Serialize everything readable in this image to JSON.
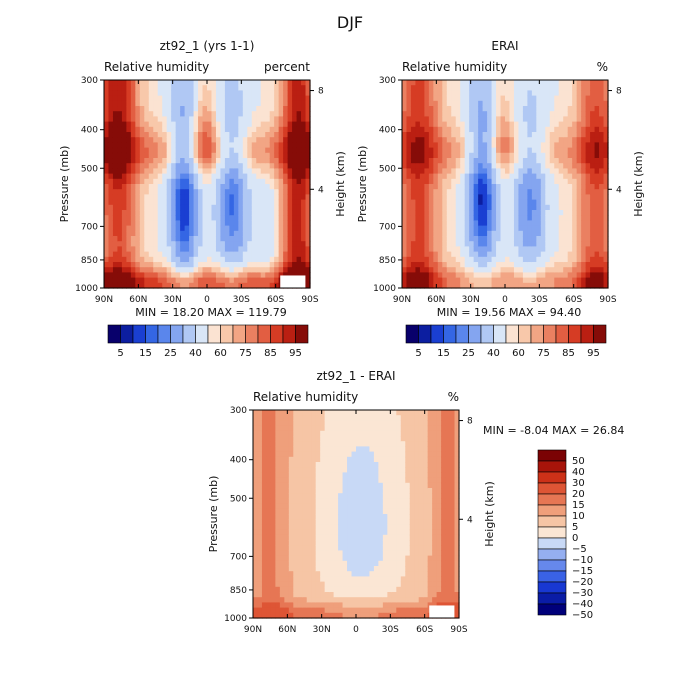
{
  "figure_title": "DJF",
  "chart_data": [
    {
      "id": "model",
      "type": "heatmap",
      "title": "zt92_1 (yrs 1-1)",
      "subtitle_left": "Relative humidity",
      "subtitle_right": "percent",
      "ylabel": "Pressure (mb)",
      "ylabel_right": "Height (km)",
      "x_ticks": [
        "90N",
        "60N",
        "30N",
        "0",
        "30S",
        "60S",
        "90S"
      ],
      "y_ticks": [
        "300",
        "400",
        "500",
        "700",
        "850",
        "1000"
      ],
      "y_right_ticks": [
        "8",
        "4"
      ],
      "ylim": [
        1000,
        300
      ],
      "y_scale": "log",
      "stats": "MIN =   18.20   MAX =  119.79",
      "levels": [
        5,
        10,
        15,
        20,
        25,
        30,
        40,
        50,
        60,
        65,
        70,
        75,
        80,
        85,
        90,
        95
      ],
      "colorbar_labels": [
        "5",
        "15",
        "25",
        "40",
        "60",
        "75",
        "85",
        "95"
      ],
      "colorbar_orientation": "horizontal"
    },
    {
      "id": "erai",
      "type": "heatmap",
      "title": "ERAI",
      "subtitle_left": "Relative humidity",
      "subtitle_right": "%",
      "ylabel": "Pressure (mb)",
      "ylabel_right": "Height (km)",
      "x_ticks": [
        "90N",
        "60N",
        "30N",
        "0",
        "30S",
        "60S",
        "90S"
      ],
      "y_ticks": [
        "300",
        "400",
        "500",
        "700",
        "850",
        "1000"
      ],
      "y_right_ticks": [
        "8",
        "4"
      ],
      "ylim": [
        1000,
        300
      ],
      "y_scale": "log",
      "stats": "MIN =   19.56   MAX =   94.40",
      "levels": [
        5,
        10,
        15,
        20,
        25,
        30,
        40,
        50,
        60,
        65,
        70,
        75,
        80,
        85,
        90,
        95
      ],
      "colorbar_labels": [
        "5",
        "15",
        "25",
        "40",
        "60",
        "75",
        "85",
        "95"
      ],
      "colorbar_orientation": "horizontal"
    },
    {
      "id": "diff",
      "type": "heatmap",
      "title": "zt92_1 - ERAI",
      "subtitle_left": "Relative humidity",
      "subtitle_right": "%",
      "ylabel": "Pressure (mb)",
      "ylabel_right": "Height (km)",
      "x_ticks": [
        "90N",
        "60N",
        "30N",
        "0",
        "30S",
        "60S",
        "90S"
      ],
      "y_ticks": [
        "300",
        "400",
        "500",
        "700",
        "850",
        "1000"
      ],
      "y_right_ticks": [
        "8",
        "4"
      ],
      "ylim": [
        1000,
        300
      ],
      "y_scale": "log",
      "stats": "MIN =   -8.04   MAX =   26.84",
      "levels": [
        -50,
        -40,
        -30,
        -20,
        -15,
        -10,
        -5,
        0,
        5,
        10,
        15,
        20,
        30,
        40,
        50
      ],
      "colorbar_labels": [
        "50",
        "40",
        "30",
        "20",
        "15",
        "10",
        "5",
        "0",
        "−5",
        "−10",
        "−15",
        "−20",
        "−30",
        "−40",
        "−50"
      ],
      "colorbar_orientation": "vertical"
    }
  ],
  "colors": {
    "abs_scale": [
      "#08006b",
      "#0c1ea0",
      "#1a3fd2",
      "#3466e4",
      "#5a86ec",
      "#84a5f0",
      "#b0c8f4",
      "#d9e6f7",
      "#fbe3d2",
      "#f8c8aa",
      "#f2a584",
      "#ea8061",
      "#e25e42",
      "#d63c24",
      "#ba1f12",
      "#860c08"
    ],
    "diff_scale": [
      "#00007a",
      "#0a1ca6",
      "#1838d2",
      "#3a62e6",
      "#6688ec",
      "#95aff0",
      "#c8d9f6",
      "#fbe6d4",
      "#f6c5a5",
      "#ef9f7b",
      "#e67654",
      "#de5535",
      "#cc3118",
      "#a7140a",
      "#7b0204"
    ]
  }
}
